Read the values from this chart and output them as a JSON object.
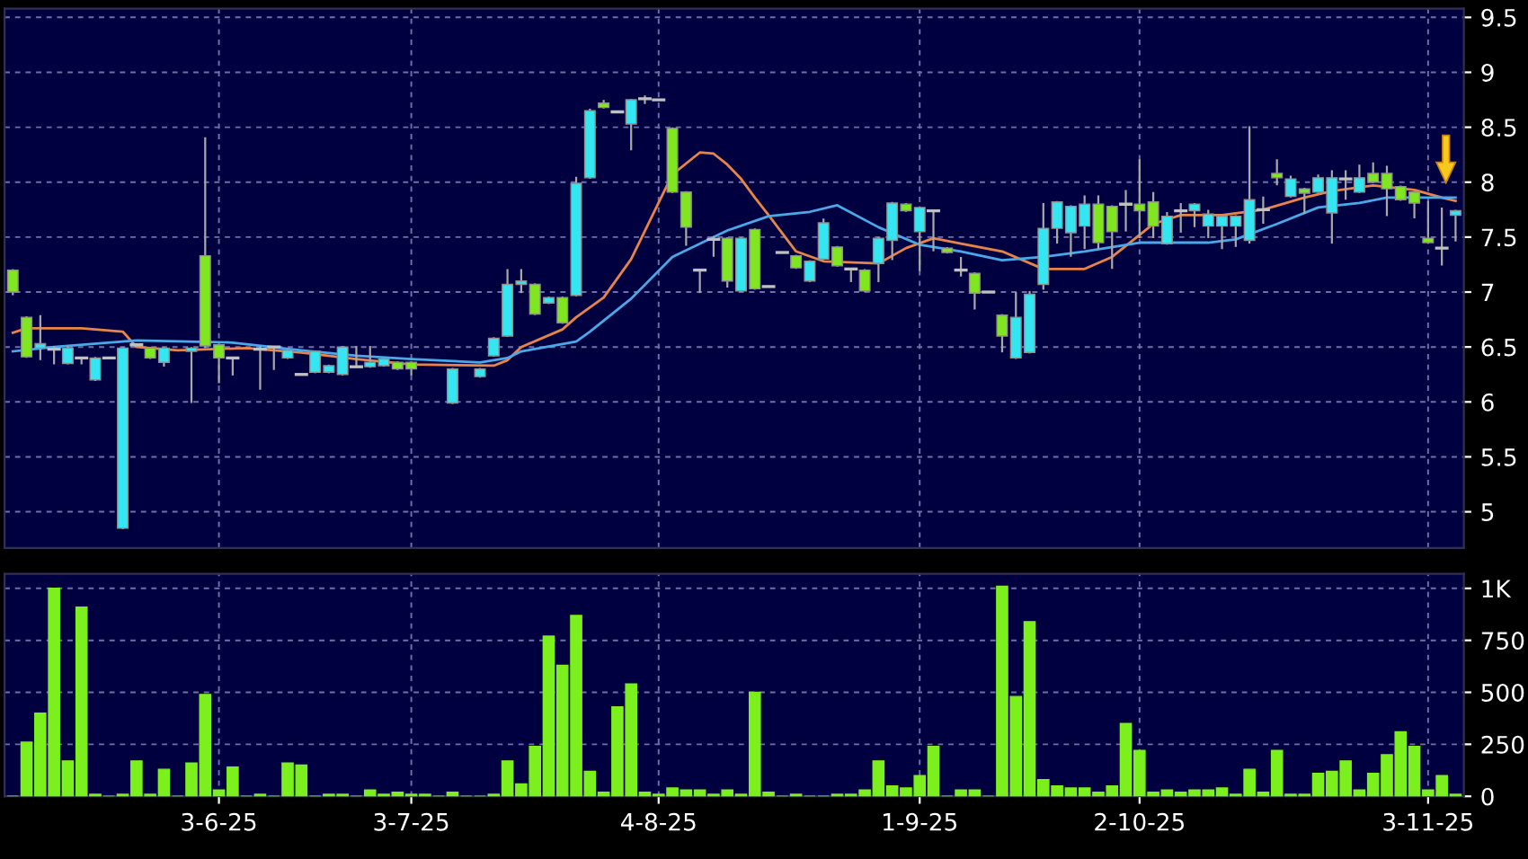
{
  "chart_data": [
    {
      "type": "candlestick",
      "categories": [
        null,
        null,
        null,
        null,
        null,
        null,
        null,
        null,
        null,
        null,
        null,
        null,
        null,
        null,
        null,
        null,
        null,
        null,
        null,
        null,
        null,
        null,
        null,
        null,
        null,
        null,
        null,
        null,
        null,
        null,
        null,
        null,
        null,
        null,
        null,
        null,
        null,
        null,
        null,
        null,
        null,
        null,
        null,
        null,
        null,
        null,
        null,
        null,
        null,
        null,
        null,
        null,
        null,
        null,
        null,
        null,
        null,
        null,
        null,
        null,
        null,
        null,
        null,
        null,
        null,
        null,
        null,
        null,
        null,
        null,
        null,
        null,
        null,
        null,
        null,
        null,
        null,
        null,
        null,
        null,
        null,
        null,
        null,
        null,
        null,
        null,
        null,
        null,
        null,
        null,
        null,
        null,
        null,
        null,
        null,
        null,
        null,
        null,
        null,
        null,
        null,
        null,
        null,
        null,
        null,
        null
      ],
      "ohlc": [
        [
          7.2,
          7.2,
          6.98,
          7.0
        ],
        [
          6.77,
          6.77,
          6.41,
          6.41
        ],
        [
          6.49,
          6.78,
          6.39,
          6.53
        ],
        [
          6.48,
          6.5,
          6.35,
          6.48
        ],
        [
          6.35,
          6.5,
          6.35,
          6.49
        ],
        [
          6.4,
          6.4,
          6.35,
          6.4
        ],
        [
          6.2,
          6.4,
          6.2,
          6.4
        ],
        [
          6.4,
          6.4,
          6.4,
          6.4
        ],
        [
          4.85,
          6.49,
          4.85,
          6.49
        ],
        [
          6.52,
          6.52,
          6.52,
          6.52
        ],
        [
          6.49,
          6.49,
          6.4,
          6.4
        ],
        [
          6.36,
          6.49,
          6.33,
          6.49
        ],
        null,
        [
          6.46,
          6.49,
          6.0,
          6.49
        ],
        [
          7.33,
          8.4,
          6.5,
          6.51
        ],
        [
          6.52,
          6.52,
          6.18,
          6.4
        ],
        [
          6.4,
          6.4,
          6.25,
          6.4
        ],
        null,
        [
          6.48,
          6.5,
          6.12,
          6.48
        ],
        [
          6.5,
          6.5,
          6.3,
          6.5
        ],
        [
          6.4,
          6.47,
          6.4,
          6.47
        ],
        [
          6.25,
          6.25,
          6.25,
          6.25
        ],
        [
          6.27,
          6.46,
          6.27,
          6.46
        ],
        [
          6.27,
          6.33,
          6.27,
          6.33
        ],
        [
          6.25,
          6.5,
          6.25,
          6.5
        ],
        [
          6.32,
          6.5,
          6.32,
          6.32
        ],
        [
          6.32,
          6.5,
          6.32,
          6.36
        ],
        [
          6.33,
          6.39,
          6.33,
          6.39
        ],
        [
          6.36,
          6.36,
          6.3,
          6.3
        ],
        [
          6.36,
          6.36,
          6.25,
          6.3
        ],
        null,
        null,
        [
          5.99,
          6.3,
          5.99,
          6.3
        ],
        null,
        [
          6.23,
          6.3,
          6.23,
          6.3
        ],
        [
          6.42,
          6.58,
          6.42,
          6.58
        ],
        [
          6.6,
          7.2,
          6.6,
          7.07
        ],
        [
          7.07,
          7.2,
          7.0,
          7.1
        ],
        [
          7.07,
          7.07,
          6.8,
          6.8
        ],
        [
          6.9,
          6.95,
          6.9,
          6.95
        ],
        [
          6.95,
          6.95,
          6.72,
          6.72
        ],
        [
          6.97,
          8.04,
          6.97,
          7.99
        ],
        [
          8.04,
          8.66,
          8.04,
          8.65
        ],
        [
          8.72,
          8.74,
          8.68,
          8.68
        ],
        [
          8.64,
          8.64,
          8.64,
          8.64
        ],
        [
          8.53,
          8.75,
          8.3,
          8.75
        ],
        [
          8.76,
          8.78,
          8.72,
          8.76
        ],
        [
          8.75,
          8.75,
          8.75,
          8.75
        ],
        [
          8.49,
          8.49,
          7.91,
          7.91
        ],
        [
          7.91,
          7.91,
          7.43,
          7.59
        ],
        [
          7.2,
          7.2,
          7.0,
          7.2
        ],
        [
          7.48,
          7.5,
          7.33,
          7.48
        ],
        [
          7.49,
          7.49,
          7.05,
          7.1
        ],
        [
          7.01,
          7.49,
          7.01,
          7.49
        ],
        [
          7.57,
          7.57,
          7.03,
          7.03
        ],
        [
          7.05,
          7.05,
          7.05,
          7.05
        ],
        [
          7.36,
          7.36,
          7.36,
          7.36
        ],
        [
          7.33,
          7.33,
          7.22,
          7.22
        ],
        [
          7.1,
          7.28,
          7.1,
          7.28
        ],
        [
          7.3,
          7.66,
          7.3,
          7.63
        ],
        [
          7.41,
          7.41,
          7.24,
          7.24
        ],
        [
          7.21,
          7.21,
          7.1,
          7.21
        ],
        [
          7.2,
          7.2,
          7.01,
          7.01
        ],
        [
          7.26,
          7.49,
          7.1,
          7.49
        ],
        [
          7.47,
          7.81,
          7.3,
          7.81
        ],
        [
          7.8,
          7.8,
          7.74,
          7.74
        ],
        [
          7.55,
          7.77,
          7.2,
          7.77
        ],
        [
          7.74,
          7.74,
          7.38,
          7.74
        ],
        [
          7.4,
          7.4,
          7.36,
          7.36
        ],
        [
          7.2,
          7.31,
          7.15,
          7.2
        ],
        [
          7.17,
          7.17,
          6.85,
          6.99
        ],
        [
          7.0,
          7.0,
          7.0,
          7.0
        ],
        [
          6.79,
          6.79,
          6.46,
          6.6
        ],
        [
          6.4,
          6.99,
          6.4,
          6.77
        ],
        [
          6.45,
          7.0,
          6.45,
          6.98
        ],
        [
          7.07,
          7.8,
          7.03,
          7.58
        ],
        [
          7.58,
          7.82,
          7.45,
          7.82
        ],
        [
          7.54,
          7.78,
          7.33,
          7.78
        ],
        [
          7.6,
          7.87,
          7.4,
          7.8
        ],
        [
          7.8,
          7.87,
          7.4,
          7.45
        ],
        [
          7.78,
          7.78,
          7.22,
          7.55
        ],
        [
          7.8,
          7.92,
          7.56,
          7.8
        ],
        [
          7.8,
          8.2,
          7.5,
          7.74
        ],
        [
          7.82,
          7.9,
          7.5,
          7.6
        ],
        [
          7.44,
          7.72,
          7.44,
          7.69
        ],
        [
          7.74,
          7.8,
          7.55,
          7.74
        ],
        [
          7.74,
          7.8,
          7.6,
          7.8
        ],
        [
          7.6,
          7.74,
          7.5,
          7.71
        ],
        [
          7.6,
          7.69,
          7.4,
          7.69
        ],
        [
          7.6,
          7.69,
          7.42,
          7.69
        ],
        [
          7.47,
          8.5,
          7.45,
          7.84
        ],
        [
          7.75,
          7.86,
          7.63,
          7.75
        ],
        [
          8.08,
          8.2,
          7.98,
          8.04
        ],
        [
          7.87,
          8.05,
          7.87,
          8.03
        ],
        [
          7.94,
          7.94,
          7.72,
          7.9
        ],
        [
          7.91,
          8.06,
          7.91,
          8.04
        ],
        [
          7.72,
          8.1,
          7.45,
          8.04
        ],
        [
          8.03,
          8.1,
          7.85,
          8.03
        ],
        [
          7.91,
          8.15,
          7.91,
          8.04
        ],
        [
          8.08,
          8.17,
          8.0,
          8.0
        ],
        [
          8.08,
          8.14,
          7.7,
          7.94
        ],
        [
          7.96,
          7.96,
          7.84,
          7.84
        ],
        [
          7.91,
          7.91,
          7.68,
          7.81
        ],
        [
          7.49,
          7.82,
          7.45,
          7.45
        ],
        [
          7.4,
          7.76,
          7.25,
          7.4
        ],
        [
          7.7,
          7.74,
          7.47,
          7.74
        ]
      ],
      "colors": [
        "#7fe620",
        "#7fe620",
        "#33e6f2",
        "#c0c0c0",
        "#33e6f2",
        "#c0c0c0",
        "#33e6f2",
        "#c0c0c0",
        "#33e6f2",
        "#c0c0c0",
        "#7fe620",
        "#33e6f2",
        null,
        "#33e6f2",
        "#7fe620",
        "#7fe620",
        "#c0c0c0",
        null,
        "#c0c0c0",
        "#c0c0c0",
        "#33e6f2",
        "#c0c0c0",
        "#33e6f2",
        "#33e6f2",
        "#33e6f2",
        "#c0c0c0",
        "#33e6f2",
        "#33e6f2",
        "#7fe620",
        "#7fe620",
        null,
        null,
        "#33e6f2",
        null,
        "#33e6f2",
        "#33e6f2",
        "#33e6f2",
        "#33e6f2",
        "#7fe620",
        "#33e6f2",
        "#7fe620",
        "#33e6f2",
        "#33e6f2",
        "#7fe620",
        "#c0c0c0",
        "#33e6f2",
        "#c0c0c0",
        "#c0c0c0",
        "#7fe620",
        "#7fe620",
        "#c0c0c0",
        "#c0c0c0",
        "#7fe620",
        "#33e6f2",
        "#7fe620",
        "#c0c0c0",
        "#c0c0c0",
        "#7fe620",
        "#33e6f2",
        "#33e6f2",
        "#7fe620",
        "#c0c0c0",
        "#7fe620",
        "#33e6f2",
        "#33e6f2",
        "#7fe620",
        "#33e6f2",
        "#c0c0c0",
        "#7fe620",
        "#c0c0c0",
        "#7fe620",
        "#c0c0c0",
        "#7fe620",
        "#33e6f2",
        "#33e6f2",
        "#33e6f2",
        "#33e6f2",
        "#33e6f2",
        "#33e6f2",
        "#7fe620",
        "#7fe620",
        "#c0c0c0",
        "#7fe620",
        "#7fe620",
        "#33e6f2",
        "#c0c0c0",
        "#33e6f2",
        "#33e6f2",
        "#33e6f2",
        "#33e6f2",
        "#33e6f2",
        "#c0c0c0",
        "#7fe620",
        "#33e6f2",
        "#7fe620",
        "#33e6f2",
        "#33e6f2",
        "#c0c0c0",
        "#33e6f2",
        "#7fe620",
        "#7fe620",
        "#7fe620",
        "#7fe620",
        "#7fe620",
        "#c0c0c0",
        "#33e6f2"
      ],
      "series": [
        {
          "type": "line",
          "color": "#e8844a",
          "values": [
            6.63,
            6.67,
            null,
            null,
            null,
            6.67,
            null,
            null,
            6.64,
            6.5,
            null,
            null,
            6.47,
            null,
            null,
            null,
            null,
            6.49,
            null,
            null,
            null,
            6.45,
            null,
            null,
            null,
            6.39,
            null,
            null,
            null,
            6.34,
            null,
            null,
            null,
            null,
            null,
            6.33,
            6.38,
            6.5,
            null,
            null,
            6.66,
            6.77,
            null,
            6.95,
            null,
            7.3,
            null,
            null,
            8.07,
            null,
            8.27,
            8.26,
            8.16,
            8.03,
            7.86,
            7.7,
            null,
            7.37,
            null,
            7.28,
            null,
            null,
            null,
            7.26,
            null,
            7.4,
            null,
            7.49,
            null,
            7.44,
            null,
            null,
            7.37,
            null,
            null,
            7.21,
            null,
            null,
            7.21,
            null,
            7.32,
            null,
            null,
            7.62,
            null,
            7.7,
            null,
            null,
            7.7,
            null,
            null,
            7.75,
            null,
            null,
            7.86,
            null,
            7.92,
            null,
            null,
            7.97,
            null,
            null,
            7.93,
            null,
            7.86,
            7.83
          ]
        },
        {
          "type": "line",
          "color": "#4aa8e8",
          "values": [
            6.46,
            null,
            null,
            6.5,
            null,
            null,
            null,
            null,
            null,
            6.56,
            null,
            null,
            null,
            null,
            null,
            null,
            6.54,
            null,
            null,
            null,
            null,
            6.47,
            null,
            null,
            null,
            6.42,
            null,
            null,
            null,
            6.39,
            null,
            null,
            null,
            null,
            6.36,
            null,
            6.4,
            6.46,
            null,
            null,
            null,
            6.55,
            6.64,
            null,
            null,
            6.94,
            null,
            null,
            7.32,
            null,
            null,
            null,
            7.56,
            null,
            null,
            7.69,
            null,
            null,
            7.73,
            null,
            7.79,
            null,
            null,
            7.59,
            null,
            null,
            7.43,
            null,
            null,
            7.37,
            null,
            null,
            7.29,
            null,
            null,
            7.32,
            null,
            null,
            7.37,
            null,
            null,
            null,
            7.45,
            null,
            null,
            null,
            null,
            7.45,
            null,
            7.48,
            null,
            null,
            7.62,
            null,
            null,
            7.77,
            null,
            null,
            7.81,
            null,
            7.86,
            null,
            null,
            null,
            null,
            7.86
          ]
        }
      ],
      "ylim": [
        4.67,
        9.58
      ],
      "yticks": [
        5,
        5.5,
        6,
        6.5,
        7,
        7.5,
        8,
        8.5,
        9,
        9.5
      ],
      "grid": true,
      "tick_labels": "y"
    },
    {
      "type": "bar",
      "categories": [
        null,
        null,
        null,
        null,
        null,
        null,
        null,
        null,
        null,
        null,
        null,
        null,
        null,
        null,
        null,
        "3-6-25",
        null,
        null,
        null,
        null,
        null,
        null,
        null,
        null,
        null,
        null,
        null,
        null,
        null,
        "3-7-25",
        null,
        null,
        null,
        null,
        null,
        null,
        null,
        null,
        null,
        null,
        null,
        null,
        null,
        null,
        null,
        null,
        null,
        "4-8-25",
        null,
        null,
        null,
        null,
        null,
        null,
        null,
        null,
        null,
        null,
        null,
        null,
        null,
        null,
        null,
        null,
        null,
        null,
        "1-9-25",
        null,
        null,
        null,
        null,
        null,
        null,
        null,
        null,
        null,
        null,
        null,
        null,
        null,
        null,
        null,
        "2-10-25",
        null,
        null,
        null,
        null,
        null,
        null,
        null,
        null,
        null,
        null,
        null,
        null,
        null,
        null,
        null,
        null,
        null,
        null,
        null,
        null,
        "3-11-25",
        null,
        null
      ],
      "values": [
        0,
        260,
        400,
        1000,
        170,
        910,
        10,
        0,
        10,
        170,
        10,
        130,
        0,
        160,
        490,
        30,
        140,
        0,
        10,
        0,
        160,
        150,
        0,
        10,
        10,
        0,
        30,
        10,
        20,
        10,
        10,
        0,
        20,
        0,
        0,
        10,
        170,
        60,
        240,
        770,
        630,
        870,
        120,
        20,
        430,
        540,
        20,
        10,
        40,
        30,
        30,
        10,
        30,
        10,
        500,
        20,
        0,
        10,
        0,
        0,
        10,
        10,
        30,
        170,
        50,
        40,
        100,
        240,
        0,
        30,
        30,
        0,
        1010,
        480,
        840,
        80,
        50,
        40,
        40,
        20,
        50,
        350,
        220,
        20,
        30,
        20,
        30,
        30,
        40,
        10,
        130,
        20,
        220,
        10,
        10,
        110,
        120,
        170,
        30,
        110,
        200,
        310,
        240,
        30,
        100,
        10
      ],
      "color": "#7cf01c",
      "ylim": [
        0,
        1070
      ],
      "yticks": [
        0,
        250,
        500,
        750,
        {
          "value": 1000,
          "label": "1K"
        }
      ],
      "grid": true
    }
  ]
}
